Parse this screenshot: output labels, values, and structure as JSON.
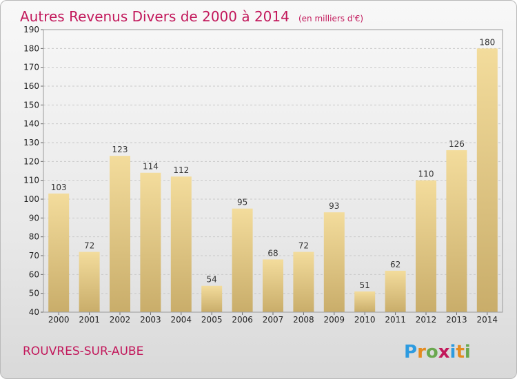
{
  "chart_data": {
    "type": "bar",
    "title": "Autres Revenus Divers de 2000 à 2014",
    "subtitle": "(en milliers d'€)",
    "categories": [
      "2000",
      "2001",
      "2002",
      "2003",
      "2004",
      "2005",
      "2006",
      "2007",
      "2008",
      "2009",
      "2010",
      "2011",
      "2012",
      "2013",
      "2014"
    ],
    "values": [
      103,
      72,
      123,
      114,
      112,
      54,
      95,
      68,
      72,
      93,
      51,
      62,
      110,
      126,
      180
    ],
    "ylim": [
      40,
      190
    ],
    "yticks": [
      40,
      50,
      60,
      70,
      80,
      90,
      100,
      110,
      120,
      130,
      140,
      150,
      160,
      170,
      180,
      190
    ],
    "grid": true,
    "bar_color": "#e4c98a"
  },
  "location": "ROUVRES-SUR-AUBE",
  "logo": {
    "text": "Proxiti",
    "colors": [
      "#2d9be0",
      "#e58b1f",
      "#6aa84f",
      "#c2185b",
      "#2d9be0",
      "#e58b1f",
      "#6aa84f"
    ]
  }
}
